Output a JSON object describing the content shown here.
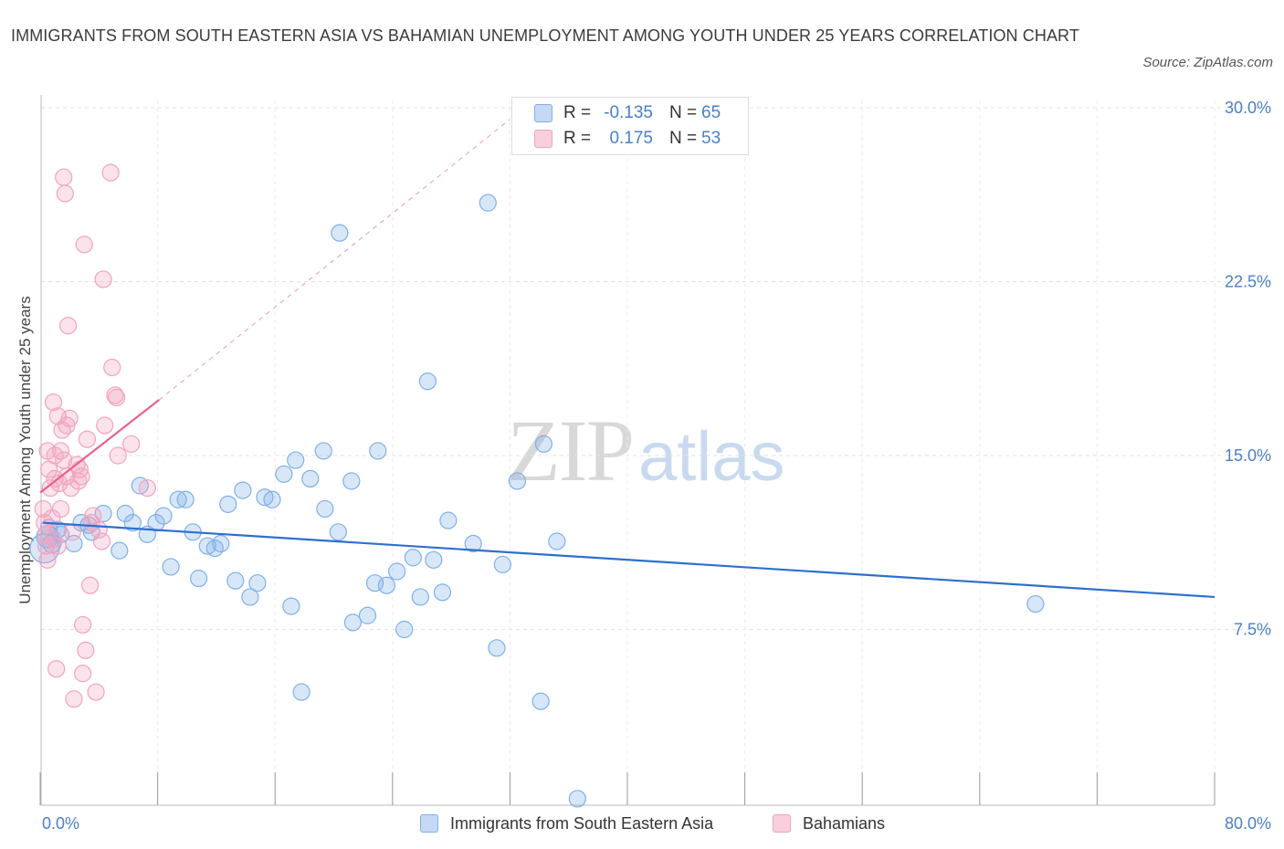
{
  "chart_data": {
    "type": "scatter",
    "title": "IMMIGRANTS FROM SOUTH EASTERN ASIA VS BAHAMIAN UNEMPLOYMENT AMONG YOUTH UNDER 25 YEARS CORRELATION CHART",
    "source": "Source: ZipAtlas.com",
    "xlabel": "",
    "ylabel": "Unemployment Among Youth under 25 years",
    "xlim": [
      0,
      80
    ],
    "ylim": [
      0,
      30
    ],
    "x_tick_labels": [
      "0.0%",
      "80.0%"
    ],
    "y_ticks": [
      7.5,
      15,
      22.5,
      30
    ],
    "y_tick_labels": [
      "7.5%",
      "15.0%",
      "22.5%",
      "30.0%"
    ],
    "grid": true,
    "legend_position": "top-center",
    "watermark": {
      "zip": "ZIP",
      "atlas": "atlas"
    },
    "stats": [
      {
        "r_label": "R =",
        "r_value": "-0.135",
        "n_label": "N =",
        "n_value": "65"
      },
      {
        "r_label": "R =",
        "r_value": "0.175",
        "n_label": "N =",
        "n_value": "53"
      }
    ],
    "series": [
      {
        "name": "Immigrants from South Eastern Asia",
        "color": "#7fb0e8",
        "line_color": "#2e6fcf",
        "trend": {
          "x": [
            0.2,
            80.0
          ],
          "y": [
            12.1,
            8.9
          ]
        },
        "points": [
          [
            0.3,
            11.0,
            16
          ],
          [
            0.5,
            11.5,
            12
          ],
          [
            0.6,
            11.9,
            9
          ],
          [
            0.8,
            11.2,
            10
          ],
          [
            1.2,
            11.8,
            9
          ],
          [
            1.4,
            11.6,
            9
          ],
          [
            2.3,
            11.2,
            9
          ],
          [
            2.8,
            12.1,
            9
          ],
          [
            3.3,
            12.0,
            9
          ],
          [
            3.5,
            11.7,
            9
          ],
          [
            4.3,
            12.5,
            9
          ],
          [
            5.4,
            10.9,
            9
          ],
          [
            5.8,
            12.5,
            9
          ],
          [
            6.3,
            12.1,
            9
          ],
          [
            6.8,
            13.7,
            9
          ],
          [
            7.3,
            11.6,
            9
          ],
          [
            7.9,
            12.1,
            9
          ],
          [
            8.4,
            12.4,
            9
          ],
          [
            8.9,
            10.2,
            9
          ],
          [
            9.4,
            13.1,
            9
          ],
          [
            9.9,
            13.1,
            9
          ],
          [
            10.4,
            11.7,
            9
          ],
          [
            10.8,
            9.7,
            9
          ],
          [
            11.4,
            11.1,
            9
          ],
          [
            11.9,
            11.0,
            9
          ],
          [
            12.3,
            11.2,
            9
          ],
          [
            12.8,
            12.9,
            9
          ],
          [
            13.3,
            9.6,
            9
          ],
          [
            13.8,
            13.5,
            9
          ],
          [
            14.3,
            8.9,
            9
          ],
          [
            14.8,
            9.5,
            9
          ],
          [
            15.3,
            13.2,
            9
          ],
          [
            15.8,
            13.1,
            9
          ],
          [
            16.6,
            14.2,
            9
          ],
          [
            17.1,
            8.5,
            9
          ],
          [
            17.4,
            14.8,
            9
          ],
          [
            17.8,
            4.8,
            9
          ],
          [
            18.4,
            14.0,
            9
          ],
          [
            19.3,
            15.2,
            9
          ],
          [
            19.4,
            12.7,
            9
          ],
          [
            20.3,
            11.7,
            9
          ],
          [
            20.4,
            24.6,
            9
          ],
          [
            21.2,
            13.9,
            9
          ],
          [
            21.3,
            7.8,
            9
          ],
          [
            22.3,
            8.1,
            9
          ],
          [
            22.8,
            9.5,
            9
          ],
          [
            23.0,
            15.2,
            9
          ],
          [
            23.6,
            9.4,
            9
          ],
          [
            24.3,
            10.0,
            9
          ],
          [
            24.8,
            7.5,
            9
          ],
          [
            25.4,
            10.6,
            9
          ],
          [
            25.9,
            8.9,
            9
          ],
          [
            26.4,
            18.2,
            9
          ],
          [
            26.8,
            10.5,
            9
          ],
          [
            27.4,
            9.1,
            9
          ],
          [
            27.8,
            12.2,
            9
          ],
          [
            29.5,
            11.2,
            9
          ],
          [
            30.5,
            25.9,
            9
          ],
          [
            31.1,
            6.7,
            9
          ],
          [
            31.5,
            10.3,
            9
          ],
          [
            32.5,
            13.9,
            9
          ],
          [
            34.1,
            4.4,
            9
          ],
          [
            34.3,
            15.5,
            9
          ],
          [
            35.2,
            11.3,
            9
          ],
          [
            36.6,
            0.2,
            9
          ],
          [
            67.8,
            8.6,
            9
          ]
        ]
      },
      {
        "name": "Bahamians",
        "color": "#f2a3bd",
        "line_color": "#e8608d",
        "trend": {
          "x": [
            0.0,
            8.1
          ],
          "y": [
            13.4,
            17.4
          ]
        },
        "trend_extension": {
          "x": [
            8.1,
            32.0
          ],
          "y": [
            17.4,
            29.5
          ]
        },
        "points": [
          [
            0.2,
            12.7,
            9
          ],
          [
            0.3,
            12.1,
            9
          ],
          [
            0.4,
            11.6,
            9
          ],
          [
            0.4,
            11.1,
            9
          ],
          [
            0.5,
            10.5,
            9
          ],
          [
            0.5,
            15.2,
            9
          ],
          [
            0.6,
            14.4,
            9
          ],
          [
            0.7,
            13.6,
            9
          ],
          [
            0.8,
            12.3,
            9
          ],
          [
            0.9,
            11.4,
            9
          ],
          [
            0.9,
            17.3,
            9
          ],
          [
            1.0,
            14.0,
            9
          ],
          [
            1.0,
            15.0,
            9
          ],
          [
            1.1,
            5.8,
            9
          ],
          [
            1.2,
            16.7,
            9
          ],
          [
            1.2,
            11.1,
            9
          ],
          [
            1.3,
            13.8,
            9
          ],
          [
            1.4,
            12.7,
            9
          ],
          [
            1.4,
            15.2,
            9
          ],
          [
            1.5,
            16.1,
            9
          ],
          [
            1.6,
            27.0,
            9
          ],
          [
            1.6,
            14.8,
            9
          ],
          [
            1.7,
            26.3,
            9
          ],
          [
            1.8,
            14.1,
            9
          ],
          [
            1.8,
            16.3,
            9
          ],
          [
            1.9,
            20.6,
            9
          ],
          [
            2.0,
            16.6,
            9
          ],
          [
            2.1,
            13.6,
            9
          ],
          [
            2.2,
            11.7,
            9
          ],
          [
            2.3,
            4.5,
            9
          ],
          [
            2.5,
            14.6,
            9
          ],
          [
            2.6,
            13.9,
            9
          ],
          [
            2.7,
            14.4,
            9
          ],
          [
            2.8,
            14.1,
            9
          ],
          [
            2.9,
            5.6,
            9
          ],
          [
            2.9,
            7.7,
            9
          ],
          [
            3.0,
            24.1,
            9
          ],
          [
            3.1,
            6.6,
            9
          ],
          [
            3.2,
            15.7,
            9
          ],
          [
            3.4,
            9.4,
            9
          ],
          [
            3.5,
            12.1,
            9
          ],
          [
            3.6,
            12.4,
            9
          ],
          [
            3.8,
            4.8,
            9
          ],
          [
            4.0,
            11.8,
            9
          ],
          [
            4.2,
            11.3,
            9
          ],
          [
            4.4,
            16.3,
            9
          ],
          [
            4.8,
            27.2,
            9
          ],
          [
            4.9,
            18.8,
            9
          ],
          [
            4.3,
            22.6,
            9
          ],
          [
            5.1,
            17.6,
            9
          ],
          [
            5.2,
            17.5,
            9
          ],
          [
            5.3,
            15.0,
            9
          ],
          [
            6.2,
            15.5,
            9
          ],
          [
            7.3,
            13.6,
            9
          ]
        ]
      }
    ]
  }
}
